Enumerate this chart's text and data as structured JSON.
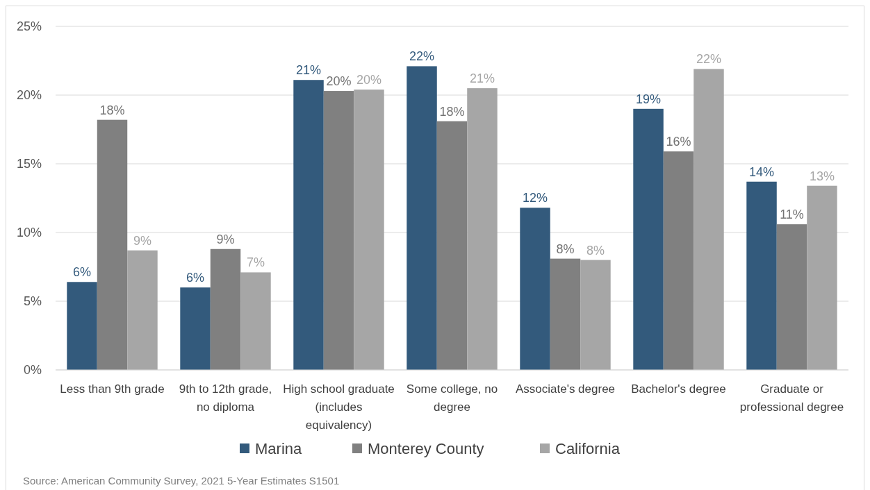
{
  "chart_data": {
    "type": "bar",
    "categories": [
      "Less than 9th grade",
      "9th to 12th grade, no diploma",
      "High school graduate (includes equivalency)",
      "Some college, no degree",
      "Associate's degree",
      "Bachelor's degree",
      "Graduate or professional degree"
    ],
    "series": [
      {
        "name": "Marina",
        "color": "#335a7c",
        "values": [
          6.4,
          6.0,
          21.1,
          22.1,
          11.8,
          19.0,
          13.7
        ],
        "value_labels": [
          "6%",
          "6%",
          "21%",
          "22%",
          "12%",
          "19%",
          "14%"
        ]
      },
      {
        "name": "Monterey County",
        "color": "#808080",
        "values": [
          18.2,
          8.8,
          20.3,
          18.1,
          8.1,
          15.9,
          10.6
        ],
        "value_labels": [
          "18%",
          "9%",
          "20%",
          "18%",
          "8%",
          "16%",
          "11%"
        ]
      },
      {
        "name": "California",
        "color": "#a6a6a6",
        "values": [
          8.7,
          7.1,
          20.4,
          20.5,
          8.0,
          21.9,
          13.4
        ],
        "value_labels": [
          "9%",
          "7%",
          "20%",
          "21%",
          "8%",
          "22%",
          "13%"
        ]
      }
    ],
    "ylim": [
      0,
      25
    ],
    "yticks": [
      {
        "value": 0,
        "label": "0%"
      },
      {
        "value": 5,
        "label": "5%"
      },
      {
        "value": 10,
        "label": "10%"
      },
      {
        "value": 15,
        "label": "15%"
      },
      {
        "value": 20,
        "label": "20%"
      },
      {
        "value": 25,
        "label": "25%"
      }
    ],
    "grid": "y",
    "legend": "bottom",
    "annotations": [
      "Source: American Community Survey, 2021 5-Year Estimates S1501"
    ]
  }
}
